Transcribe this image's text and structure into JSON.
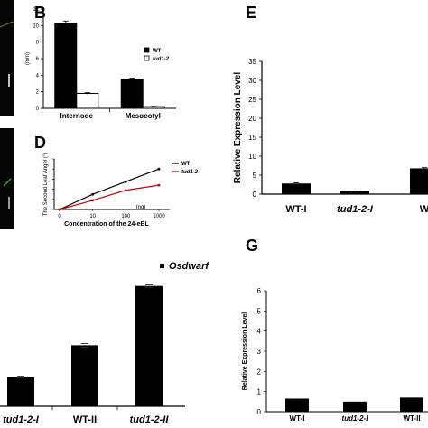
{
  "panels": {
    "b": "B",
    "d": "D",
    "e": "E",
    "g": "G"
  },
  "chart_data": [
    {
      "panel": "B",
      "type": "bar",
      "categories": [
        "Internode",
        "Mesocotyl"
      ],
      "series": [
        {
          "name": "WT",
          "values": [
            10.3,
            3.5
          ],
          "errors": [
            0.25,
            0.15
          ],
          "color": "#000000"
        },
        {
          "name": "tud1-2",
          "values": [
            1.8,
            0.2
          ],
          "errors": [
            0.1,
            0.05
          ],
          "color": "#ffffff"
        }
      ],
      "ylabel": "(mm)",
      "ylim": [
        0,
        12
      ],
      "yticks": [
        "0",
        "2",
        "4",
        "6",
        "8",
        "10",
        "12"
      ],
      "legend": "top-right"
    },
    {
      "panel": "D",
      "type": "line",
      "x": [
        "0",
        "10",
        "100",
        "1000"
      ],
      "series": [
        {
          "name": "WT",
          "values": [
            0,
            30,
            55,
            80
          ],
          "color": "#000000"
        },
        {
          "name": "tud1-2",
          "values": [
            0,
            18,
            38,
            48
          ],
          "color": "#cc0000"
        }
      ],
      "xlabel": "Concentration of the 24-eBL",
      "ylabel": "The Second Leaf Angel (°)",
      "unit_note": "(ng)",
      "ylim": [
        0,
        100
      ],
      "yticks": [
        "0",
        "20",
        "40",
        "60",
        "80",
        "100"
      ],
      "legend": "top-right"
    },
    {
      "panel": "E",
      "type": "bar",
      "categories": [
        "WT-I",
        "tud1-2-I",
        "W"
      ],
      "values": [
        2.8,
        0.8,
        6.8
      ],
      "errors": [
        0.15,
        0.05,
        0.2
      ],
      "ylabel": "Relative Expression Level",
      "ylim": [
        0,
        35
      ],
      "yticks": [
        "0",
        "5",
        "10",
        "15",
        "20",
        "25",
        "30",
        "35"
      ]
    },
    {
      "panel": "bottom-left",
      "type": "bar",
      "categories": [
        "tud1-2-I",
        "WT-II",
        "tud1-2-II"
      ],
      "values": [
        1.7,
        3.55,
        7.0
      ],
      "errors": [
        0.05,
        0.1,
        0.07
      ],
      "series_label": "Osdwarf",
      "ylim": [
        0,
        8.4
      ]
    },
    {
      "panel": "G",
      "type": "bar",
      "categories": [
        "WT-I",
        "tud1-2-I",
        "WT-II"
      ],
      "values": [
        0.65,
        0.5,
        0.7
      ],
      "ylabel": "Relative Expression Level",
      "ylim": [
        0,
        6
      ],
      "yticks": [
        "0",
        "1",
        "2",
        "3",
        "4",
        "5",
        "6"
      ]
    }
  ]
}
